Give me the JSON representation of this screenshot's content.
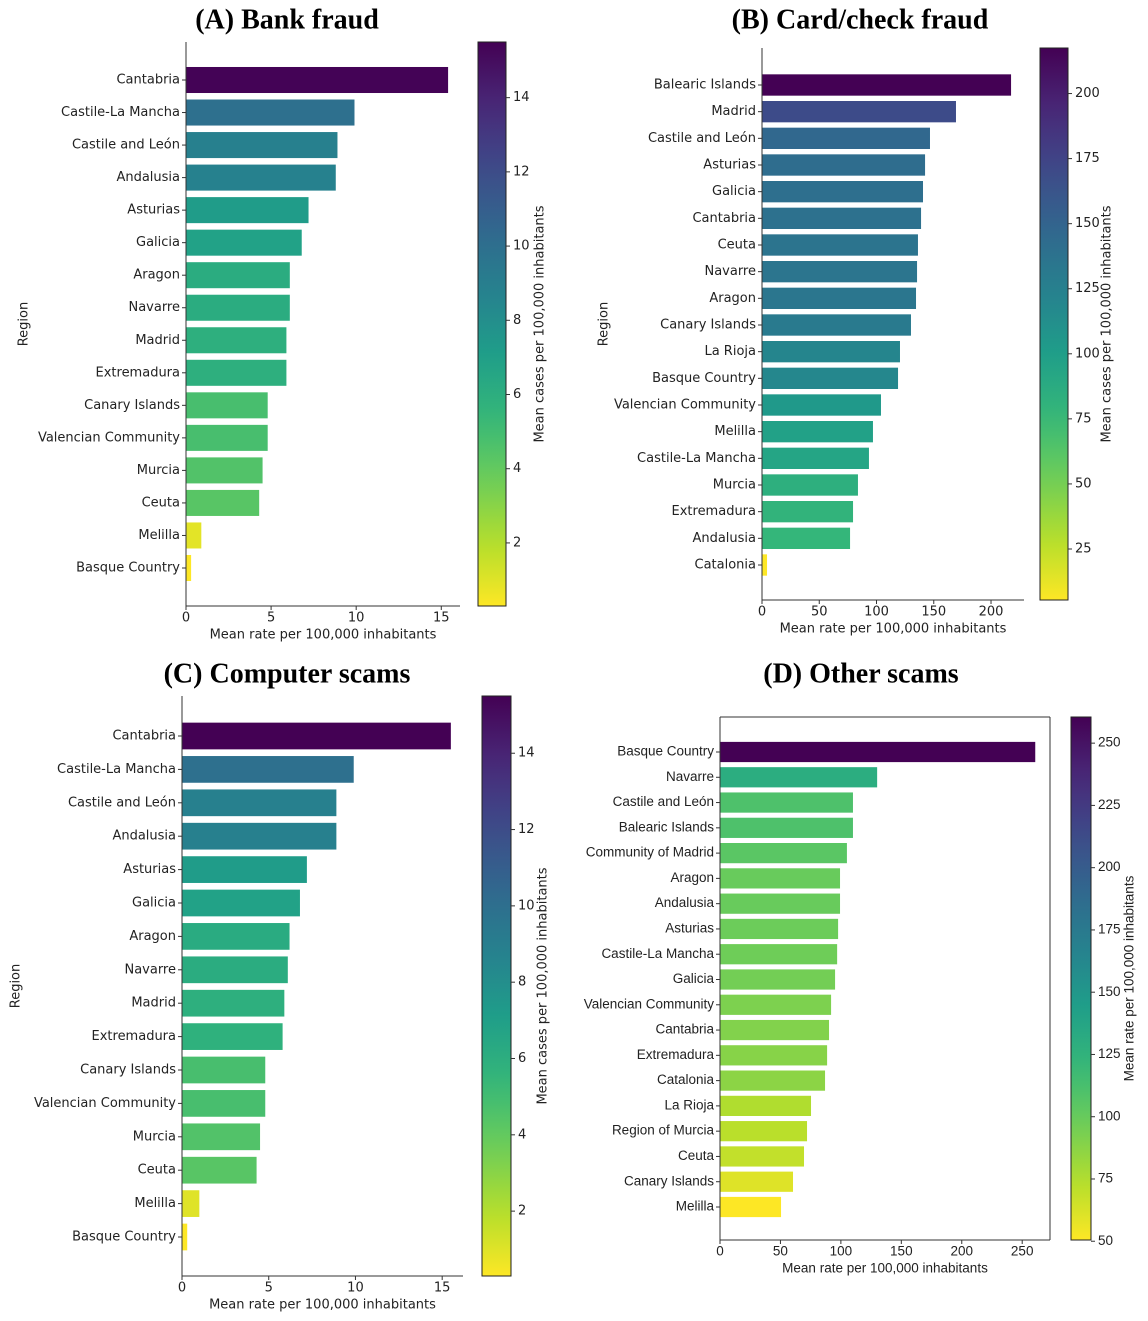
{
  "chart_data": [
    {
      "type": "bar",
      "title": "(A) Bank fraud",
      "ylabel": "Region",
      "xlabel": "Mean rate per 100,000 inhabitants",
      "categories": [
        "Cantabria",
        "Castile-La Mancha",
        "Castile and León",
        "Andalusia",
        "Asturias",
        "Galicia",
        "Aragon",
        "Navarre",
        "Madrid",
        "Extremadura",
        "Canary Islands",
        "Valencian Community",
        "Murcia",
        "Ceuta",
        "Melilla",
        "Basque Country"
      ],
      "values": [
        15.4,
        9.9,
        8.9,
        8.8,
        7.2,
        6.8,
        6.1,
        6.1,
        5.9,
        5.9,
        4.8,
        4.8,
        4.5,
        4.3,
        0.9,
        0.3
      ],
      "xlim": [
        0,
        16.1
      ],
      "xticks": [
        0,
        5,
        10,
        15
      ],
      "colormap": "viridis_r",
      "colorbar": {
        "label": "Mean cases per 100,000 inhabitants",
        "lim": [
          0.3,
          15.5
        ],
        "ticks": [
          2,
          4,
          6,
          8,
          10,
          12,
          14
        ]
      }
    },
    {
      "type": "bar",
      "title": "(B) Card/check fraud",
      "ylabel": "Region",
      "xlabel": "Mean rate per 100,000 inhabitants",
      "categories": [
        "Balearic Islands",
        "Madrid",
        "Castile and León",
        "Asturias",
        "Galicia",
        "Cantabria",
        "Ceuta",
        "Navarre",
        "Aragon",
        "Canary Islands",
        "La Rioja",
        "Basque Country",
        "Valencian Community",
        "Melilla",
        "Castile-La Mancha",
        "Murcia",
        "Extremadura",
        "Andalusia",
        "Catalonia"
      ],
      "values": [
        217.5,
        169.4,
        146.7,
        142.4,
        140.6,
        138.9,
        136.2,
        135.4,
        134.5,
        130.1,
        120.5,
        118.8,
        103.9,
        96.9,
        93.4,
        83.8,
        79.5,
        76.9,
        4.4
      ],
      "xlim": [
        0,
        228.8
      ],
      "xticks": [
        0,
        50,
        100,
        150,
        200
      ],
      "colormap": "viridis_r",
      "colorbar": {
        "label": "Mean cases per 100,000 inhabitants",
        "lim": [
          5.4,
          217.5
        ],
        "ticks": [
          25,
          50,
          75,
          100,
          125,
          150,
          175,
          200
        ]
      }
    },
    {
      "type": "bar",
      "title": "(C) Computer scams",
      "ylabel": "Region",
      "xlabel": "Mean rate per 100,000 inhabitants",
      "categories": [
        "Cantabria",
        "Castile-La Mancha",
        "Castile and León",
        "Andalusia",
        "Asturias",
        "Galicia",
        "Aragon",
        "Navarre",
        "Madrid",
        "Extremadura",
        "Canary Islands",
        "Valencian Community",
        "Murcia",
        "Ceuta",
        "Melilla",
        "Basque Country"
      ],
      "values": [
        15.5,
        9.9,
        8.9,
        8.9,
        7.2,
        6.8,
        6.2,
        6.1,
        5.9,
        5.8,
        4.8,
        4.8,
        4.5,
        4.3,
        1.0,
        0.3
      ],
      "xlim": [
        0,
        16.2
      ],
      "xticks": [
        0,
        5,
        10,
        15
      ],
      "colormap": "viridis_r",
      "colorbar": {
        "label": "Mean cases per 100,000 inhabitants",
        "lim": [
          0.3,
          15.5
        ],
        "ticks": [
          2,
          4,
          6,
          8,
          10,
          12,
          14
        ]
      }
    },
    {
      "type": "bar",
      "title": "(D) Other scams",
      "xlabel": "Mean rate per 100,000 inhabitants",
      "categories": [
        "Basque Country",
        "Navarre",
        "Castile and León",
        "Balearic Islands",
        "Community of Madrid",
        "Aragon",
        "Andalusia",
        "Asturias",
        "Castile-La Mancha",
        "Galicia",
        "Valencian Community",
        "Cantabria",
        "Extremadura",
        "Catalonia",
        "La Rioja",
        "Region of Murcia",
        "Ceuta",
        "Canary Islands",
        "Melilla"
      ],
      "values": [
        260.8,
        130,
        110,
        110,
        105,
        99.3,
        99.3,
        97.7,
        96.9,
        95.2,
        91.9,
        90.2,
        88.6,
        86.9,
        75.3,
        72,
        69.5,
        60.4,
        50.5
      ],
      "xlim": [
        0,
        273
      ],
      "xticks": [
        0,
        50,
        100,
        150,
        200,
        250
      ],
      "colormap": "viridis_r",
      "colorbar": {
        "label": "Mean rate per 100,000 inhabitants",
        "lim": [
          50.5,
          260.5
        ],
        "ticks": [
          50,
          75,
          100,
          125,
          150,
          175,
          200,
          225,
          250
        ]
      }
    }
  ]
}
